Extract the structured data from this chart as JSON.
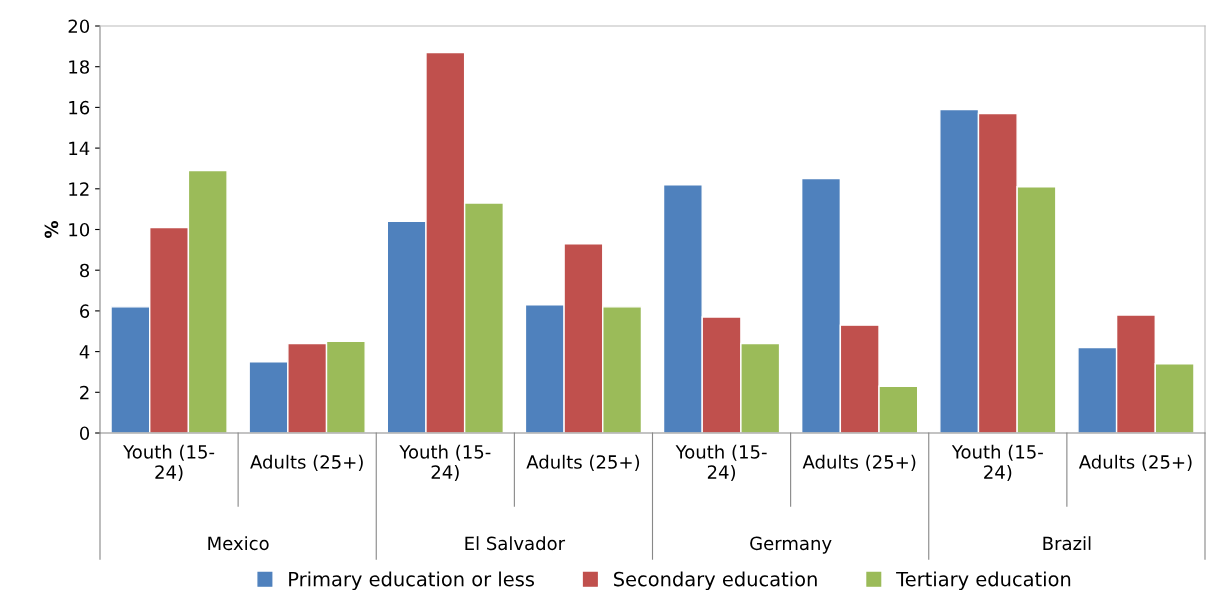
{
  "chart_data": {
    "type": "bar",
    "ylabel": "%",
    "categories": [
      "Youth (15-\n24)",
      "Adults (25+)",
      "Youth (15-\n24)",
      "Adults (25+)",
      "Youth (15-\n24)",
      "Adults (25+)",
      "Youth (15-\n24)",
      "Adults (25+)"
    ],
    "annotations": [
      "Mexico",
      "El Salvador",
      "Germany",
      "Brazil"
    ],
    "series": [
      {
        "name": "Primary education or less",
        "color": "#4f81bd",
        "values": [
          6.2,
          3.5,
          10.4,
          6.3,
          12.2,
          12.5,
          15.9,
          4.2
        ]
      },
      {
        "name": "Secondary education",
        "color": "#c0504d",
        "values": [
          10.1,
          4.4,
          18.7,
          9.3,
          5.7,
          5.3,
          15.7,
          5.8
        ]
      },
      {
        "name": "Tertiary education",
        "color": "#9bbb59",
        "values": [
          12.9,
          4.5,
          11.3,
          6.2,
          4.4,
          2.3,
          12.1,
          3.4
        ]
      }
    ],
    "ylim": [
      0,
      20
    ],
    "yticks": [
      0,
      2,
      4,
      6,
      8,
      10,
      12,
      14,
      16,
      18,
      20
    ],
    "grid": false,
    "legend": "bottom"
  }
}
